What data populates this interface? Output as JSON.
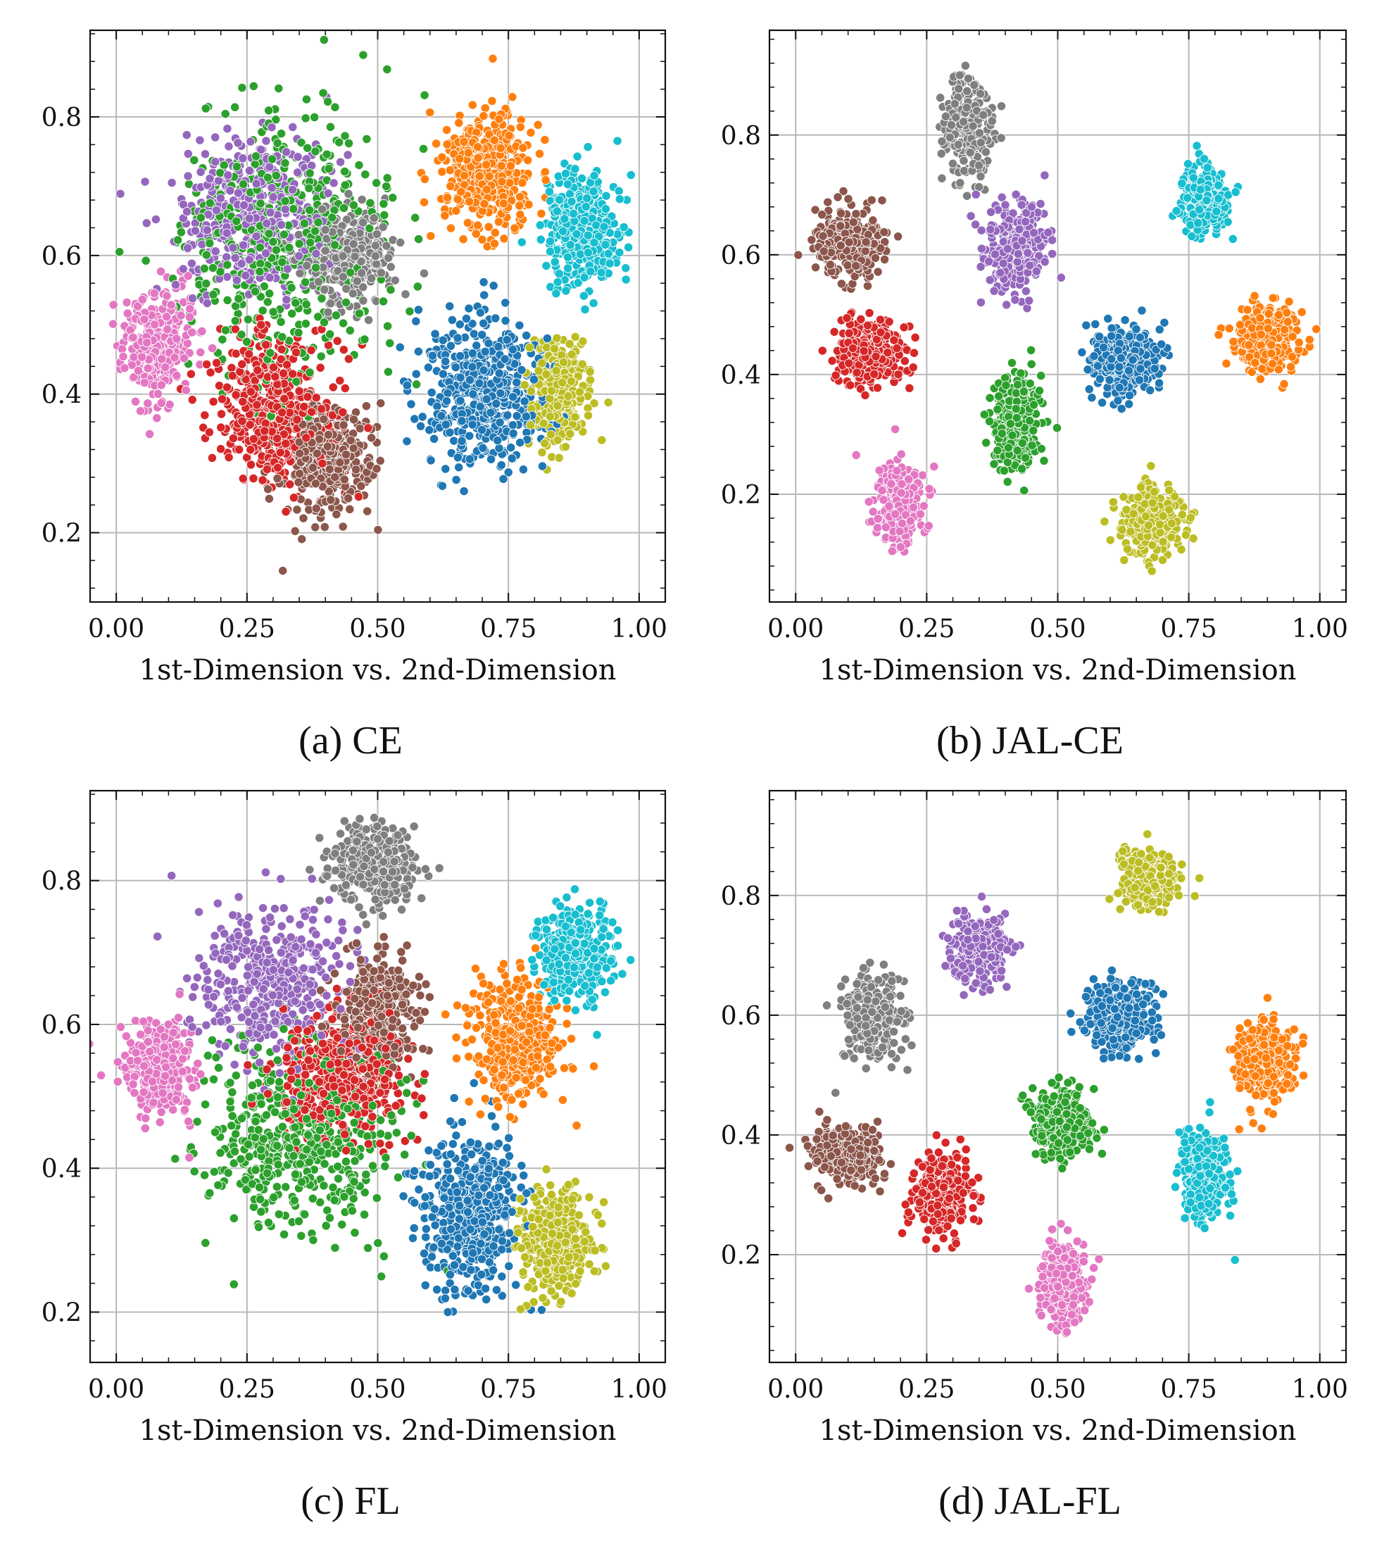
{
  "chart_data": [
    {
      "type": "scatter",
      "panel_id": "a",
      "caption": "(a) CE",
      "xlabel": "1st-Dimension vs. 2nd-Dimension",
      "ylabel": "",
      "xlim": [
        -0.05,
        1.05
      ],
      "ylim": [
        0.1,
        0.925
      ],
      "xticks": [
        "0.00",
        "0.25",
        "0.50",
        "0.75",
        "1.00"
      ],
      "yticks": [
        "0.2",
        "0.4",
        "0.6",
        "0.8"
      ],
      "grid": true,
      "series": [
        {
          "color": "#1f77b4",
          "center": [
            0.7,
            0.4
          ],
          "spread": [
            0.1,
            0.1
          ],
          "n": 500
        },
        {
          "color": "#ff7f0e",
          "center": [
            0.71,
            0.72
          ],
          "spread": [
            0.08,
            0.08
          ],
          "n": 400
        },
        {
          "color": "#2ca02c",
          "center": [
            0.33,
            0.62
          ],
          "spread": [
            0.18,
            0.17
          ],
          "n": 500
        },
        {
          "color": "#d62728",
          "center": [
            0.3,
            0.38
          ],
          "spread": [
            0.11,
            0.1
          ],
          "n": 450
        },
        {
          "color": "#9467bd",
          "center": [
            0.26,
            0.66
          ],
          "spread": [
            0.14,
            0.1
          ],
          "n": 400
        },
        {
          "color": "#8c564b",
          "center": [
            0.4,
            0.3
          ],
          "spread": [
            0.08,
            0.07
          ],
          "n": 350
        },
        {
          "color": "#e377c2",
          "center": [
            0.08,
            0.48
          ],
          "spread": [
            0.06,
            0.07
          ],
          "n": 350
        },
        {
          "color": "#7f7f7f",
          "center": [
            0.45,
            0.6
          ],
          "spread": [
            0.08,
            0.06
          ],
          "n": 350
        },
        {
          "color": "#bcbd22",
          "center": [
            0.85,
            0.4
          ],
          "spread": [
            0.05,
            0.07
          ],
          "n": 350
        },
        {
          "color": "#17becf",
          "center": [
            0.89,
            0.64
          ],
          "spread": [
            0.06,
            0.07
          ],
          "n": 400
        }
      ]
    },
    {
      "type": "scatter",
      "panel_id": "b",
      "caption": "(b) JAL-CE",
      "xlabel": "1st-Dimension vs. 2nd-Dimension",
      "ylabel": "",
      "xlim": [
        -0.05,
        1.05
      ],
      "ylim": [
        0.02,
        0.975
      ],
      "xticks": [
        "0.00",
        "0.25",
        "0.50",
        "0.75",
        "1.00"
      ],
      "yticks": [
        "0.2",
        "0.4",
        "0.6",
        "0.8"
      ],
      "grid": true,
      "series": [
        {
          "color": "#1f77b4",
          "center": [
            0.63,
            0.42
          ],
          "spread": [
            0.06,
            0.05
          ],
          "n": 350
        },
        {
          "color": "#ff7f0e",
          "center": [
            0.9,
            0.46
          ],
          "spread": [
            0.05,
            0.05
          ],
          "n": 350
        },
        {
          "color": "#2ca02c",
          "center": [
            0.42,
            0.32
          ],
          "spread": [
            0.04,
            0.07
          ],
          "n": 300
        },
        {
          "color": "#d62728",
          "center": [
            0.14,
            0.44
          ],
          "spread": [
            0.06,
            0.05
          ],
          "n": 330
        },
        {
          "color": "#9467bd",
          "center": [
            0.42,
            0.61
          ],
          "spread": [
            0.05,
            0.07
          ],
          "n": 300
        },
        {
          "color": "#8c564b",
          "center": [
            0.1,
            0.62
          ],
          "spread": [
            0.06,
            0.05
          ],
          "n": 300
        },
        {
          "color": "#e377c2",
          "center": [
            0.2,
            0.18
          ],
          "spread": [
            0.04,
            0.06
          ],
          "n": 300
        },
        {
          "color": "#7f7f7f",
          "center": [
            0.33,
            0.81
          ],
          "spread": [
            0.04,
            0.07
          ],
          "n": 300
        },
        {
          "color": "#bcbd22",
          "center": [
            0.68,
            0.15
          ],
          "spread": [
            0.05,
            0.05
          ],
          "n": 330
        },
        {
          "color": "#17becf",
          "center": [
            0.78,
            0.69
          ],
          "spread": [
            0.04,
            0.05
          ],
          "n": 330
        }
      ]
    },
    {
      "type": "scatter",
      "panel_id": "c",
      "caption": "(c) FL",
      "xlabel": "1st-Dimension vs. 2nd-Dimension",
      "ylabel": "",
      "xlim": [
        -0.05,
        1.05
      ],
      "ylim": [
        0.13,
        0.925
      ],
      "xticks": [
        "0.00",
        "0.25",
        "0.50",
        "0.75",
        "1.00"
      ],
      "yticks": [
        "0.2",
        "0.4",
        "0.6",
        "0.8"
      ],
      "grid": true,
      "series": [
        {
          "color": "#1f77b4",
          "center": [
            0.68,
            0.34
          ],
          "spread": [
            0.08,
            0.1
          ],
          "n": 450
        },
        {
          "color": "#ff7f0e",
          "center": [
            0.76,
            0.58
          ],
          "spread": [
            0.08,
            0.08
          ],
          "n": 400
        },
        {
          "color": "#2ca02c",
          "center": [
            0.35,
            0.44
          ],
          "spread": [
            0.17,
            0.12
          ],
          "n": 500
        },
        {
          "color": "#d62728",
          "center": [
            0.43,
            0.53
          ],
          "spread": [
            0.11,
            0.08
          ],
          "n": 450
        },
        {
          "color": "#9467bd",
          "center": [
            0.3,
            0.66
          ],
          "spread": [
            0.14,
            0.1
          ],
          "n": 400
        },
        {
          "color": "#8c564b",
          "center": [
            0.5,
            0.62
          ],
          "spread": [
            0.07,
            0.07
          ],
          "n": 350
        },
        {
          "color": "#e377c2",
          "center": [
            0.08,
            0.54
          ],
          "spread": [
            0.06,
            0.06
          ],
          "n": 350
        },
        {
          "color": "#7f7f7f",
          "center": [
            0.49,
            0.82
          ],
          "spread": [
            0.07,
            0.05
          ],
          "n": 350
        },
        {
          "color": "#bcbd22",
          "center": [
            0.84,
            0.3
          ],
          "spread": [
            0.06,
            0.07
          ],
          "n": 350
        },
        {
          "color": "#17becf",
          "center": [
            0.88,
            0.7
          ],
          "spread": [
            0.06,
            0.06
          ],
          "n": 400
        }
      ]
    },
    {
      "type": "scatter",
      "panel_id": "d",
      "caption": "(d) JAL-FL",
      "xlabel": "1st-Dimension vs. 2nd-Dimension",
      "ylabel": "",
      "xlim": [
        -0.05,
        1.05
      ],
      "ylim": [
        0.02,
        0.975
      ],
      "xticks": [
        "0.00",
        "0.25",
        "0.50",
        "0.75",
        "1.00"
      ],
      "yticks": [
        "0.2",
        "0.4",
        "0.6",
        "0.8"
      ],
      "grid": true,
      "series": [
        {
          "color": "#1f77b4",
          "center": [
            0.62,
            0.6
          ],
          "spread": [
            0.06,
            0.05
          ],
          "n": 330
        },
        {
          "color": "#ff7f0e",
          "center": [
            0.9,
            0.52
          ],
          "spread": [
            0.05,
            0.06
          ],
          "n": 330
        },
        {
          "color": "#2ca02c",
          "center": [
            0.51,
            0.42
          ],
          "spread": [
            0.05,
            0.05
          ],
          "n": 300
        },
        {
          "color": "#d62728",
          "center": [
            0.28,
            0.3
          ],
          "spread": [
            0.05,
            0.06
          ],
          "n": 300
        },
        {
          "color": "#9467bd",
          "center": [
            0.35,
            0.71
          ],
          "spread": [
            0.05,
            0.05
          ],
          "n": 300
        },
        {
          "color": "#8c564b",
          "center": [
            0.1,
            0.37
          ],
          "spread": [
            0.06,
            0.04
          ],
          "n": 300
        },
        {
          "color": "#e377c2",
          "center": [
            0.51,
            0.15
          ],
          "spread": [
            0.04,
            0.06
          ],
          "n": 300
        },
        {
          "color": "#7f7f7f",
          "center": [
            0.15,
            0.6
          ],
          "spread": [
            0.05,
            0.06
          ],
          "n": 300
        },
        {
          "color": "#bcbd22",
          "center": [
            0.67,
            0.83
          ],
          "spread": [
            0.05,
            0.04
          ],
          "n": 300
        },
        {
          "color": "#17becf",
          "center": [
            0.78,
            0.33
          ],
          "spread": [
            0.04,
            0.06
          ],
          "n": 330
        }
      ]
    }
  ]
}
